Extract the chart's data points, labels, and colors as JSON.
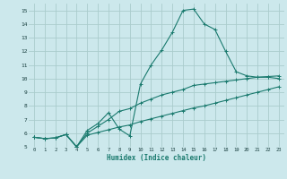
{
  "xlabel": "Humidex (Indice chaleur)",
  "bg_color": "#cce8ec",
  "grid_color": "#aacccc",
  "line_color": "#1a7a6e",
  "xlim": [
    -0.5,
    23.5
  ],
  "ylim": [
    5,
    15.5
  ],
  "xticks": [
    0,
    1,
    2,
    3,
    4,
    5,
    6,
    7,
    8,
    9,
    10,
    11,
    12,
    13,
    14,
    15,
    16,
    17,
    18,
    19,
    20,
    21,
    22,
    23
  ],
  "yticks": [
    5,
    6,
    7,
    8,
    9,
    10,
    11,
    12,
    13,
    14,
    15
  ],
  "line1_x": [
    0,
    1,
    2,
    3,
    4,
    5,
    6,
    7,
    8,
    9,
    10,
    11,
    12,
    13,
    14,
    15,
    16,
    17,
    18,
    19,
    20,
    21,
    22,
    23
  ],
  "line1_y": [
    5.7,
    5.6,
    5.65,
    5.9,
    5.0,
    6.2,
    6.7,
    7.5,
    6.3,
    5.8,
    9.6,
    11.0,
    12.1,
    13.4,
    15.0,
    15.1,
    14.0,
    13.6,
    12.0,
    10.5,
    10.2,
    10.1,
    10.1,
    10.0
  ],
  "line2_x": [
    0,
    1,
    2,
    3,
    4,
    5,
    6,
    7,
    8,
    9,
    10,
    11,
    12,
    13,
    14,
    15,
    16,
    17,
    18,
    19,
    20,
    21,
    22,
    23
  ],
  "line2_y": [
    5.7,
    5.6,
    5.65,
    5.9,
    5.0,
    6.0,
    6.5,
    7.0,
    7.6,
    7.8,
    8.2,
    8.5,
    8.8,
    9.0,
    9.2,
    9.5,
    9.6,
    9.7,
    9.8,
    9.9,
    10.0,
    10.1,
    10.15,
    10.2
  ],
  "line3_x": [
    0,
    1,
    2,
    3,
    4,
    5,
    6,
    7,
    8,
    9,
    10,
    11,
    12,
    13,
    14,
    15,
    16,
    17,
    18,
    19,
    20,
    21,
    22,
    23
  ],
  "line3_y": [
    5.7,
    5.6,
    5.65,
    5.9,
    5.0,
    5.85,
    6.05,
    6.25,
    6.45,
    6.6,
    6.85,
    7.05,
    7.25,
    7.45,
    7.65,
    7.85,
    8.0,
    8.2,
    8.4,
    8.6,
    8.8,
    9.0,
    9.2,
    9.4
  ]
}
